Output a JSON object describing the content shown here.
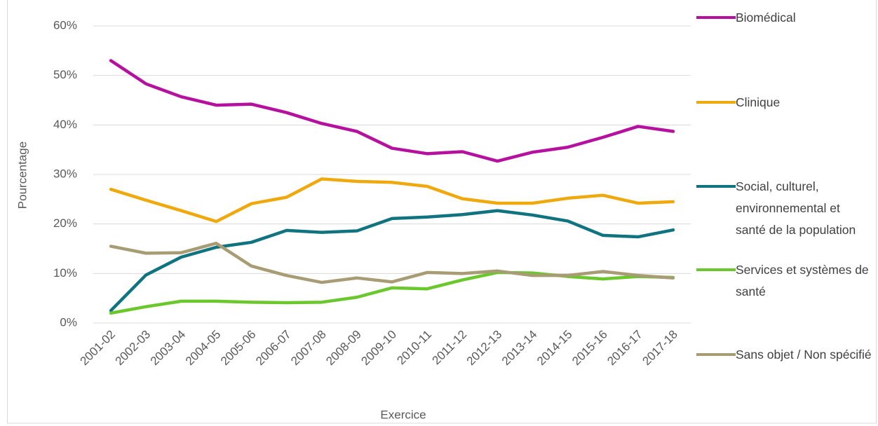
{
  "chart_data": {
    "type": "line",
    "x_label": "Exercice",
    "y_label": "Pourcentage",
    "categories": [
      "2001-02",
      "2002-03",
      "2003-04",
      "2004-05",
      "2005-06",
      "2006-07",
      "2007-08",
      "2008-09",
      "2009-10",
      "2010-11",
      "2011-12",
      "2012-13",
      "2013-14",
      "2014-15",
      "2015-16",
      "2016-17",
      "2017-18"
    ],
    "series": [
      {
        "name": "Biomédical",
        "color": "#b5119e",
        "values": [
          53,
          48.3,
          45.7,
          44,
          44.2,
          42.5,
          40.3,
          38.7,
          35.3,
          34.2,
          34.6,
          32.7,
          34.5,
          35.5,
          37.5,
          39.7,
          38.7
        ]
      },
      {
        "name": "Clinique",
        "color": "#f0a90d",
        "values": [
          27,
          24.8,
          22.7,
          20.5,
          24.1,
          25.4,
          29.1,
          28.6,
          28.4,
          27.6,
          25.1,
          24.2,
          24.2,
          25.2,
          25.8,
          24.2,
          24.5
        ]
      },
      {
        "name": "Social, culturel, environnemental et santé de la population",
        "color": "#0f7480",
        "values": [
          2.5,
          9.7,
          13.3,
          15.3,
          16.3,
          18.7,
          18.3,
          18.6,
          21.1,
          21.4,
          21.9,
          22.7,
          21.8,
          20.6,
          17.7,
          17.4,
          18.8
        ]
      },
      {
        "name": "Services et systèmes de santé",
        "color": "#6ac72c",
        "values": [
          2,
          3.3,
          4.4,
          4.4,
          4.2,
          4.1,
          4.2,
          5.2,
          7.1,
          6.9,
          8.7,
          10.2,
          10.1,
          9.4,
          8.9,
          9.4,
          9.2
        ]
      },
      {
        "name": "Sans objet / Non spécifié",
        "color": "#a89c74",
        "values": [
          15.5,
          14.1,
          14.2,
          16.1,
          11.5,
          9.6,
          8.2,
          9.1,
          8.3,
          10.2,
          10,
          10.5,
          9.6,
          9.6,
          10.4,
          9.6,
          9.1
        ]
      }
    ],
    "ylim": [
      0,
      60
    ],
    "yticks": [
      {
        "value": 0,
        "label": "0%"
      },
      {
        "value": 10,
        "label": "10%"
      },
      {
        "value": 20,
        "label": "20%"
      },
      {
        "value": 30,
        "label": "30%"
      },
      {
        "value": 40,
        "label": "40%"
      },
      {
        "value": 50,
        "label": "50%"
      },
      {
        "value": 60,
        "label": "60%"
      }
    ],
    "grid": true
  }
}
